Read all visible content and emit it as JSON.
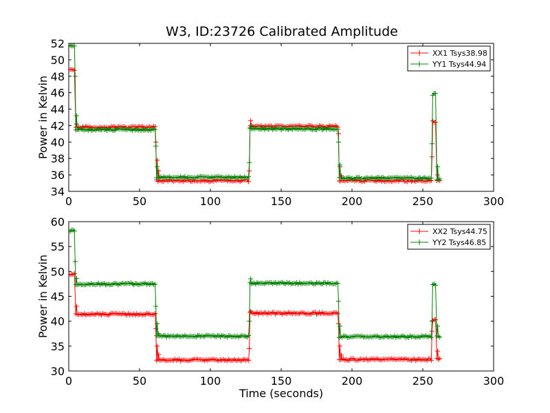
{
  "chart_data": [
    {
      "type": "line",
      "title": "W3, ID:23726 Calibrated Amplitude",
      "xlabel": "",
      "ylabel": "Power in Kelvin",
      "xlim": [
        0,
        300
      ],
      "ylim": [
        34,
        52
      ],
      "xticks": [
        0,
        50,
        100,
        150,
        200,
        250,
        300
      ],
      "yticks": [
        34,
        36,
        38,
        40,
        42,
        44,
        46,
        48,
        50,
        52
      ],
      "grid": false,
      "legend_position": "top-right",
      "series": [
        {
          "name": "XX1 Tsys38.98",
          "color": "#ff0000",
          "segments": [
            {
              "x0": 1,
              "x1": 4,
              "level": 48.8
            },
            {
              "x0": 5,
              "x1": 61,
              "level": 41.8
            },
            {
              "x0": 62,
              "x1": 127,
              "level": 35.3
            },
            {
              "x0": 128,
              "x1": 190,
              "level": 41.9
            },
            {
              "x0": 191,
              "x1": 256,
              "level": 35.3
            },
            {
              "x0": 257,
              "x1": 259,
              "level": 42.5
            },
            {
              "x0": 260,
              "x1": 262,
              "level": 35.4
            }
          ],
          "transients": [
            [
              5,
              42.2
            ],
            [
              61,
              40.0
            ],
            [
              62,
              37.8
            ],
            [
              63,
              36.5
            ],
            [
              127,
              36.5
            ],
            [
              128,
              42.6
            ],
            [
              190,
              41.0
            ],
            [
              191,
              37.0
            ],
            [
              192,
              35.9
            ],
            [
              256,
              38.2
            ],
            [
              260,
              36.0
            ]
          ]
        },
        {
          "name": "YY1 Tsys44.94",
          "color": "#008000",
          "segments": [
            {
              "x0": 1,
              "x1": 4,
              "level": 51.7
            },
            {
              "x0": 5,
              "x1": 61,
              "level": 41.5
            },
            {
              "x0": 62,
              "x1": 127,
              "level": 35.7
            },
            {
              "x0": 128,
              "x1": 190,
              "level": 41.6
            },
            {
              "x0": 191,
              "x1": 256,
              "level": 35.6
            },
            {
              "x0": 257,
              "x1": 259,
              "level": 45.8
            },
            {
              "x0": 260,
              "x1": 262,
              "level": 35.5
            }
          ],
          "transients": [
            [
              4,
              48.0
            ],
            [
              5,
              43.2
            ],
            [
              61,
              39.5
            ],
            [
              62,
              37.0
            ],
            [
              127,
              37.5
            ],
            [
              128,
              42.0
            ],
            [
              190,
              40.0
            ],
            [
              191,
              37.2
            ],
            [
              256,
              39.8
            ],
            [
              260,
              37.0
            ]
          ]
        }
      ]
    },
    {
      "type": "line",
      "title": "",
      "xlabel": "Time (seconds)",
      "ylabel": "Power in Kelvin",
      "xlim": [
        0,
        300
      ],
      "ylim": [
        30,
        60
      ],
      "xticks": [
        0,
        50,
        100,
        150,
        200,
        250,
        300
      ],
      "yticks": [
        30,
        35,
        40,
        45,
        50,
        55,
        60
      ],
      "grid": false,
      "legend_position": "top-right",
      "series": [
        {
          "name": "XX2 Tsys44.75",
          "color": "#ff0000",
          "segments": [
            {
              "x0": 1,
              "x1": 4,
              "level": 49.4
            },
            {
              "x0": 5,
              "x1": 61,
              "level": 41.4
            },
            {
              "x0": 62,
              "x1": 127,
              "level": 32.2
            },
            {
              "x0": 128,
              "x1": 190,
              "level": 41.6
            },
            {
              "x0": 191,
              "x1": 256,
              "level": 32.3
            },
            {
              "x0": 257,
              "x1": 259,
              "level": 40.3
            },
            {
              "x0": 260,
              "x1": 262,
              "level": 32.4
            }
          ],
          "transients": [
            [
              5,
              43.0
            ],
            [
              61,
              38.5
            ],
            [
              62,
              35.0
            ],
            [
              63,
              33.3
            ],
            [
              127,
              34.5
            ],
            [
              128,
              42.0
            ],
            [
              190,
              39.5
            ],
            [
              191,
              35.0
            ],
            [
              192,
              33.2
            ],
            [
              256,
              38.0
            ],
            [
              260,
              34.0
            ]
          ]
        },
        {
          "name": "YY2 Tsys46.85",
          "color": "#008000",
          "segments": [
            {
              "x0": 1,
              "x1": 4,
              "level": 58.2
            },
            {
              "x0": 5,
              "x1": 61,
              "level": 47.5
            },
            {
              "x0": 62,
              "x1": 127,
              "level": 37.0
            },
            {
              "x0": 128,
              "x1": 190,
              "level": 47.6
            },
            {
              "x0": 191,
              "x1": 256,
              "level": 36.9
            },
            {
              "x0": 257,
              "x1": 259,
              "level": 47.3
            },
            {
              "x0": 260,
              "x1": 262,
              "level": 36.9
            }
          ],
          "transients": [
            [
              4,
              52.0
            ],
            [
              5,
              48.6
            ],
            [
              61,
              43.0
            ],
            [
              62,
              39.5
            ],
            [
              63,
              37.5
            ],
            [
              127,
              40.0
            ],
            [
              128,
              48.5
            ],
            [
              190,
              44.0
            ],
            [
              191,
              39.0
            ],
            [
              256,
              40.0
            ],
            [
              260,
              39.0
            ]
          ]
        }
      ]
    }
  ]
}
